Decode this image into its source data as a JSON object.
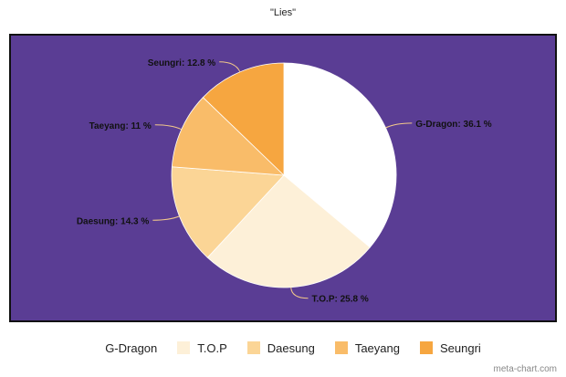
{
  "chart_data": {
    "type": "pie",
    "title": "\"Lies\"",
    "categories": [
      "G-Dragon",
      "T.O.P",
      "Daesung",
      "Taeyang",
      "Seungri"
    ],
    "values": [
      36.1,
      25.8,
      14.3,
      11,
      12.8
    ],
    "slice_labels": [
      "G-Dragon: 36.1 %",
      "T.O.P: 25.8 %",
      "Daesung: 14.3 %",
      "Taeyang: 11 %",
      "Seungri: 12.8 %"
    ],
    "colors": [
      "#ffffff",
      "#fdf0d8",
      "#fbd596",
      "#f9bc69",
      "#f6a640"
    ],
    "background_color": "#5a3d94",
    "legend": {
      "position": "bottom",
      "entries": [
        "G-Dragon",
        "T.O.P",
        "Daesung",
        "Taeyang",
        "Seungri"
      ]
    }
  },
  "footer": {
    "credit": "meta-chart.com"
  }
}
